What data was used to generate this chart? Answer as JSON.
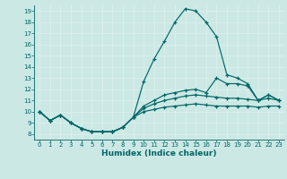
{
  "xlabel": "Humidex (Indice chaleur)",
  "bg_color": "#cce8e4",
  "grid_color": "#d8eeeb",
  "line_color": "#006666",
  "xlim": [
    -0.5,
    23.5
  ],
  "ylim": [
    7.5,
    19.5
  ],
  "xtick_labels": [
    "0",
    "1",
    "2",
    "3",
    "4",
    "5",
    "6",
    "7",
    "8",
    "9",
    "10",
    "11",
    "12",
    "13",
    "14",
    "15",
    "16",
    "17",
    "18",
    "19",
    "20",
    "21",
    "22",
    "23"
  ],
  "yticks": [
    8,
    9,
    10,
    11,
    12,
    13,
    14,
    15,
    16,
    17,
    18,
    19
  ],
  "lines": [
    {
      "x": [
        0,
        1,
        2,
        3,
        4,
        5,
        6,
        7,
        8,
        9,
        10,
        11,
        12,
        13,
        14,
        15,
        16,
        17,
        18,
        19,
        20,
        21,
        22,
        23
      ],
      "y": [
        10,
        9.2,
        9.7,
        9.0,
        8.5,
        8.2,
        8.2,
        8.2,
        8.6,
        9.5,
        12.7,
        14.7,
        16.3,
        18.0,
        19.2,
        19.0,
        18.0,
        16.7,
        13.3,
        13.0,
        12.5,
        11.0,
        11.5,
        11.0
      ]
    },
    {
      "x": [
        0,
        1,
        2,
        3,
        4,
        5,
        6,
        7,
        8,
        9,
        10,
        11,
        12,
        13,
        14,
        15,
        16,
        17,
        18,
        19,
        20,
        21,
        22,
        23
      ],
      "y": [
        10,
        9.2,
        9.7,
        9.0,
        8.5,
        8.2,
        8.2,
        8.2,
        8.6,
        9.5,
        10.5,
        11.0,
        11.5,
        11.7,
        11.9,
        12.0,
        11.7,
        13.0,
        12.5,
        12.5,
        12.3,
        11.0,
        11.5,
        11.0
      ]
    },
    {
      "x": [
        0,
        1,
        2,
        3,
        4,
        5,
        6,
        7,
        8,
        9,
        10,
        11,
        12,
        13,
        14,
        15,
        16,
        17,
        18,
        19,
        20,
        21,
        22,
        23
      ],
      "y": [
        10,
        9.2,
        9.7,
        9.0,
        8.5,
        8.2,
        8.2,
        8.2,
        8.6,
        9.5,
        10.3,
        10.7,
        11.0,
        11.2,
        11.4,
        11.5,
        11.4,
        11.3,
        11.2,
        11.2,
        11.1,
        11.0,
        11.2,
        11.0
      ]
    },
    {
      "x": [
        0,
        1,
        2,
        3,
        4,
        5,
        6,
        7,
        8,
        9,
        10,
        11,
        12,
        13,
        14,
        15,
        16,
        17,
        18,
        19,
        20,
        21,
        22,
        23
      ],
      "y": [
        10,
        9.2,
        9.7,
        9.0,
        8.5,
        8.2,
        8.2,
        8.2,
        8.6,
        9.5,
        10.0,
        10.2,
        10.4,
        10.5,
        10.6,
        10.7,
        10.6,
        10.5,
        10.5,
        10.5,
        10.5,
        10.4,
        10.5,
        10.5
      ]
    }
  ]
}
